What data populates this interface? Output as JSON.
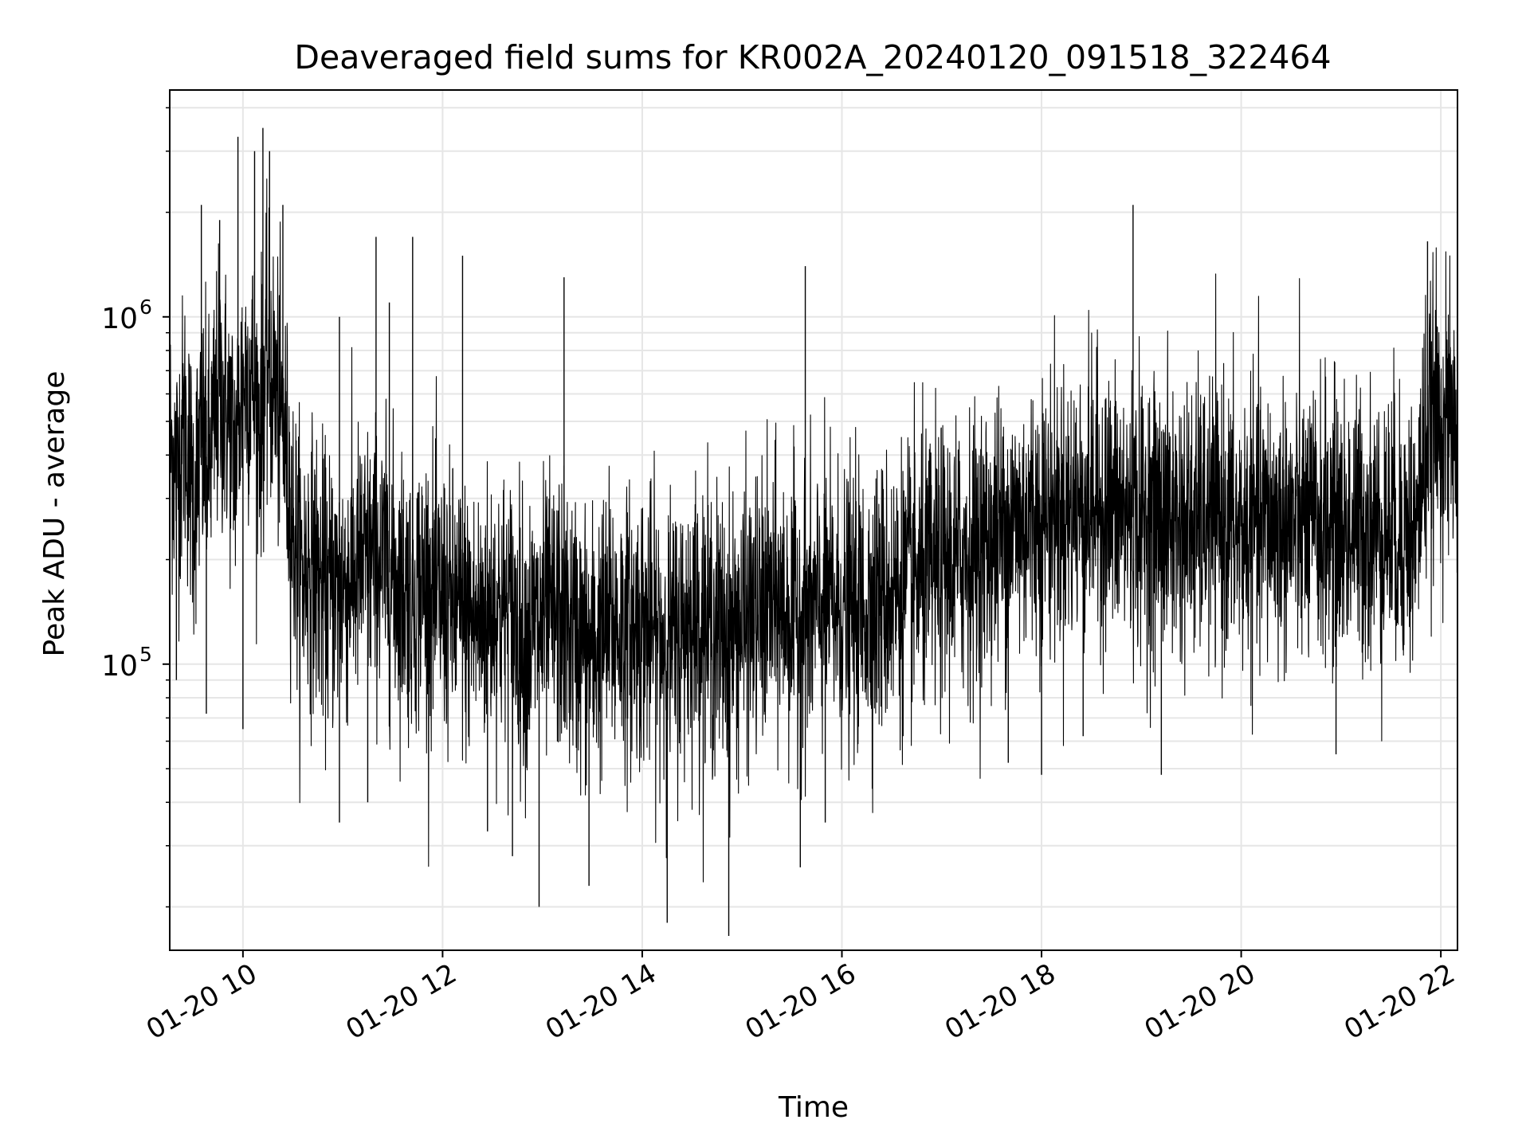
{
  "chart_data": {
    "type": "line",
    "title": "Deaveraged field sums for KR002A_20240120_091518_322464",
    "xlabel": "Time",
    "ylabel": "Peak ADU - average",
    "yscale": "log",
    "grid": true,
    "line_color": "#000000",
    "grid_color": "#e6e6e6",
    "xlim": [
      "2024-01-20T09:16",
      "2024-01-20T22:10"
    ],
    "ylim": [
      15000,
      4500000
    ],
    "x_ticks": [
      {
        "value": "2024-01-20T10:00",
        "label": "01-20 10"
      },
      {
        "value": "2024-01-20T12:00",
        "label": "01-20 12"
      },
      {
        "value": "2024-01-20T14:00",
        "label": "01-20 14"
      },
      {
        "value": "2024-01-20T16:00",
        "label": "01-20 16"
      },
      {
        "value": "2024-01-20T18:00",
        "label": "01-20 18"
      },
      {
        "value": "2024-01-20T20:00",
        "label": "01-20 20"
      },
      {
        "value": "2024-01-20T22:00",
        "label": "01-20 22"
      }
    ],
    "y_ticks": [
      {
        "value": 100000,
        "base": "10",
        "exp": "5"
      },
      {
        "value": 1000000,
        "base": "10",
        "exp": "6"
      }
    ],
    "series": [
      {
        "x": [
          "2024-01-20T09:16",
          "2024-01-20T09:20",
          "2024-01-20T09:25",
          "2024-01-20T09:30",
          "2024-01-20T09:35",
          "2024-01-20T09:40",
          "2024-01-20T09:45",
          "2024-01-20T09:50",
          "2024-01-20T09:55",
          "2024-01-20T10:00",
          "2024-01-20T10:05",
          "2024-01-20T10:10",
          "2024-01-20T10:15",
          "2024-01-20T10:20",
          "2024-01-20T10:25",
          "2024-01-20T10:30",
          "2024-01-20T10:35",
          "2024-01-20T10:40",
          "2024-01-20T10:50",
          "2024-01-20T11:00",
          "2024-01-20T11:10",
          "2024-01-20T11:20",
          "2024-01-20T11:30",
          "2024-01-20T11:40",
          "2024-01-20T11:50",
          "2024-01-20T12:00",
          "2024-01-20T12:10",
          "2024-01-20T12:20",
          "2024-01-20T12:30",
          "2024-01-20T12:40",
          "2024-01-20T12:50",
          "2024-01-20T13:00",
          "2024-01-20T13:10",
          "2024-01-20T13:20",
          "2024-01-20T13:30",
          "2024-01-20T13:40",
          "2024-01-20T13:50",
          "2024-01-20T14:00",
          "2024-01-20T14:10",
          "2024-01-20T14:20",
          "2024-01-20T14:30",
          "2024-01-20T14:40",
          "2024-01-20T14:50",
          "2024-01-20T15:00",
          "2024-01-20T15:10",
          "2024-01-20T15:20",
          "2024-01-20T15:30",
          "2024-01-20T15:40",
          "2024-01-20T15:50",
          "2024-01-20T16:00",
          "2024-01-20T16:10",
          "2024-01-20T16:20",
          "2024-01-20T16:30",
          "2024-01-20T16:40",
          "2024-01-20T16:50",
          "2024-01-20T17:00",
          "2024-01-20T17:10",
          "2024-01-20T17:20",
          "2024-01-20T17:30",
          "2024-01-20T17:40",
          "2024-01-20T17:50",
          "2024-01-20T18:00",
          "2024-01-20T18:10",
          "2024-01-20T18:20",
          "2024-01-20T18:30",
          "2024-01-20T18:40",
          "2024-01-20T18:50",
          "2024-01-20T19:00",
          "2024-01-20T19:10",
          "2024-01-20T19:20",
          "2024-01-20T19:30",
          "2024-01-20T19:40",
          "2024-01-20T19:50",
          "2024-01-20T20:00",
          "2024-01-20T20:10",
          "2024-01-20T20:20",
          "2024-01-20T20:30",
          "2024-01-20T20:40",
          "2024-01-20T20:50",
          "2024-01-20T21:00",
          "2024-01-20T21:10",
          "2024-01-20T21:20",
          "2024-01-20T21:30",
          "2024-01-20T21:40",
          "2024-01-20T21:45",
          "2024-01-20T21:50",
          "2024-01-20T21:55",
          "2024-01-20T22:00",
          "2024-01-20T22:05",
          "2024-01-20T22:10"
        ],
        "y": [
          450000,
          350000,
          500000,
          300000,
          420000,
          380000,
          600000,
          550000,
          400000,
          650000,
          700000,
          500000,
          750000,
          600000,
          450000,
          250000,
          180000,
          200000,
          160000,
          170000,
          190000,
          200000,
          180000,
          160000,
          170000,
          150000,
          140000,
          130000,
          150000,
          140000,
          120000,
          130000,
          140000,
          120000,
          110000,
          130000,
          125000,
          130000,
          120000,
          115000,
          140000,
          130000,
          120000,
          130000,
          140000,
          150000,
          140000,
          135000,
          150000,
          140000,
          145000,
          150000,
          160000,
          170000,
          180000,
          190000,
          200000,
          210000,
          230000,
          250000,
          260000,
          270000,
          275000,
          280000,
          300000,
          280000,
          270000,
          260000,
          265000,
          255000,
          250000,
          260000,
          255000,
          240000,
          250000,
          260000,
          250000,
          245000,
          255000,
          240000,
          250000,
          245000,
          250000,
          240000,
          230000,
          420000,
          500000,
          520000,
          480000,
          450000
        ]
      }
    ],
    "spikes_high": [
      {
        "x": "2024-01-20T09:57",
        "y": 3300000
      },
      {
        "x": "2024-01-20T10:07",
        "y": 3000000
      },
      {
        "x": "2024-01-20T10:12",
        "y": 3500000
      },
      {
        "x": "2024-01-20T10:16",
        "y": 3000000
      },
      {
        "x": "2024-01-20T10:24",
        "y": 2100000
      },
      {
        "x": "2024-01-20T09:35",
        "y": 2100000
      },
      {
        "x": "2024-01-20T09:46",
        "y": 1900000
      },
      {
        "x": "2024-01-20T11:20",
        "y": 1700000
      },
      {
        "x": "2024-01-20T11:42",
        "y": 1700000
      },
      {
        "x": "2024-01-20T12:12",
        "y": 1500000
      },
      {
        "x": "2024-01-20T13:13",
        "y": 1300000
      },
      {
        "x": "2024-01-20T15:38",
        "y": 1400000
      },
      {
        "x": "2024-01-20T18:55",
        "y": 2100000
      },
      {
        "x": "2024-01-20T21:52",
        "y": 1650000
      },
      {
        "x": "2024-01-20T10:58",
        "y": 1000000
      },
      {
        "x": "2024-01-20T11:28",
        "y": 1100000
      }
    ],
    "spikes_low": [
      {
        "x": "2024-01-20T09:20",
        "y": 90000
      },
      {
        "x": "2024-01-20T09:38",
        "y": 72000
      },
      {
        "x": "2024-01-20T10:00",
        "y": 65000
      },
      {
        "x": "2024-01-20T10:58",
        "y": 35000
      },
      {
        "x": "2024-01-20T11:15",
        "y": 40000
      },
      {
        "x": "2024-01-20T12:27",
        "y": 33000
      },
      {
        "x": "2024-01-20T12:42",
        "y": 28000
      },
      {
        "x": "2024-01-20T12:58",
        "y": 20000
      },
      {
        "x": "2024-01-20T13:28",
        "y": 23000
      },
      {
        "x": "2024-01-20T14:15",
        "y": 18000
      },
      {
        "x": "2024-01-20T14:52",
        "y": 16500
      },
      {
        "x": "2024-01-20T15:35",
        "y": 26000
      },
      {
        "x": "2024-01-20T15:50",
        "y": 35000
      },
      {
        "x": "2024-01-20T17:40",
        "y": 52000
      },
      {
        "x": "2024-01-20T18:00",
        "y": 48000
      },
      {
        "x": "2024-01-20T18:25",
        "y": 62000
      },
      {
        "x": "2024-01-20T19:12",
        "y": 48000
      },
      {
        "x": "2024-01-20T20:57",
        "y": 55000
      }
    ]
  }
}
